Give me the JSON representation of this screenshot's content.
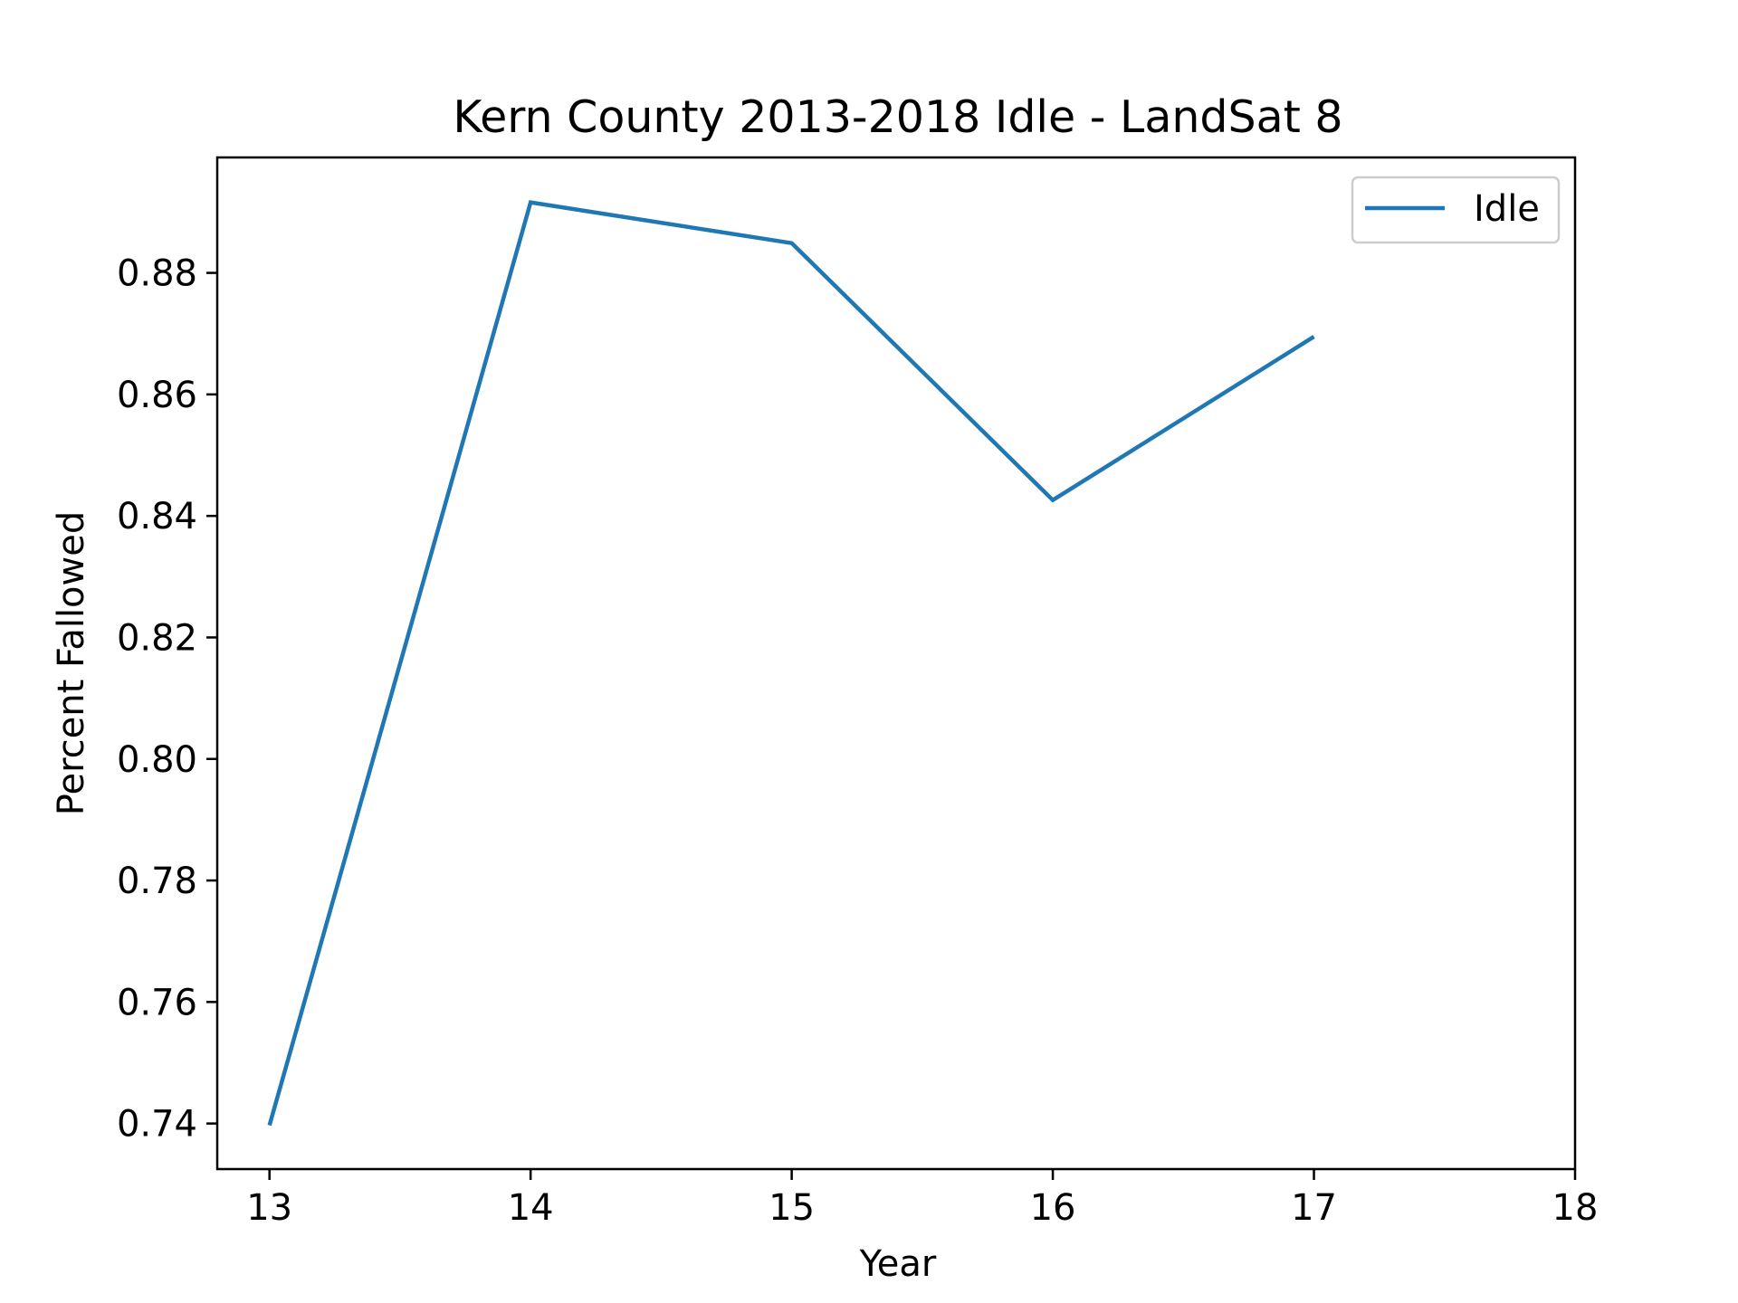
{
  "chart_data": {
    "type": "line",
    "title": "Kern County 2013-2018 Idle - LandSat 8",
    "xlabel": "Year",
    "ylabel": "Percent Fallowed",
    "x": [
      13,
      14,
      15,
      16,
      17
    ],
    "series": [
      {
        "name": "Idle",
        "values": [
          0.7397,
          0.8916,
          0.8849,
          0.8426,
          0.8695
        ],
        "color": "#1f77b4"
      }
    ],
    "x_ticks": [
      "13",
      "14",
      "15",
      "16",
      "17",
      "18"
    ],
    "y_ticks": [
      "0.74",
      "0.76",
      "0.78",
      "0.80",
      "0.82",
      "0.84",
      "0.86",
      "0.88"
    ],
    "xlim": [
      12.8,
      18
    ],
    "ylim": [
      0.7325,
      0.899
    ],
    "grid": false,
    "legend": "top-right"
  }
}
